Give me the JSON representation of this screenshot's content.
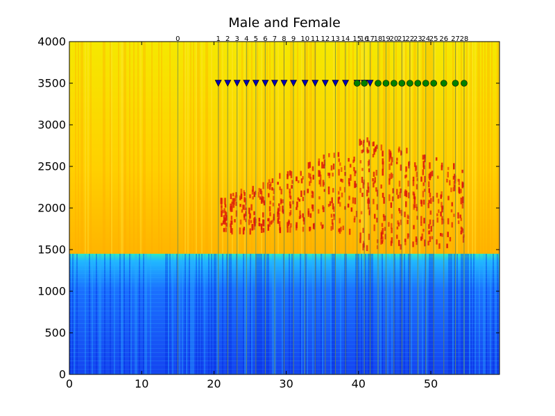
{
  "chart_data": {
    "type": "heatmap",
    "title": "Male and Female",
    "xlabel": "",
    "ylabel": "",
    "xlim": [
      0,
      59.5
    ],
    "ylim": [
      0,
      4000
    ],
    "x_ticks": [
      0,
      10,
      20,
      30,
      40,
      50
    ],
    "y_ticks": [
      0,
      500,
      1000,
      1500,
      2000,
      2500,
      3000,
      3500,
      4000
    ],
    "grid": false,
    "colormap": "jet",
    "spectrogram": {
      "low_band_top_hz": 1450,
      "low_band_color": "#1a66ff",
      "high_band_color": "#ffc800",
      "formant_color": "#dd1a0a"
    },
    "segment_boundaries": {
      "labels": [
        "0",
        "1",
        "2",
        "3",
        "4",
        "5",
        "6",
        "7",
        "8",
        "9",
        "10",
        "11",
        "12",
        "13",
        "14",
        "15",
        "16",
        "17",
        "18",
        "19",
        "20",
        "21",
        "22",
        "23",
        "24",
        "25",
        "26",
        "27",
        "28"
      ],
      "x": [
        15,
        20.6,
        21.9,
        23.2,
        24.5,
        25.8,
        27.1,
        28.4,
        29.7,
        31.0,
        32.6,
        34.0,
        35.4,
        36.8,
        38.2,
        39.8,
        40.8,
        41.6,
        42.7,
        43.8,
        44.9,
        46.0,
        47.1,
        48.2,
        49.3,
        50.4,
        51.8,
        53.4,
        54.6
      ]
    },
    "series": [
      {
        "marker": "triangle-down",
        "color": "#0000b0",
        "x": [
          20.6,
          21.9,
          23.2,
          24.5,
          25.8,
          27.1,
          28.4,
          29.7,
          31.0,
          32.6,
          34.0,
          35.4,
          36.8,
          38.2,
          39.8,
          40.8,
          41.6
        ],
        "y": [
          3500,
          3500,
          3500,
          3500,
          3500,
          3500,
          3500,
          3500,
          3500,
          3500,
          3500,
          3500,
          3500,
          3500,
          3500,
          3500,
          3500
        ]
      },
      {
        "marker": "circle",
        "color": "#008000",
        "x": [
          39.8,
          40.8,
          42.7,
          43.8,
          44.9,
          46.0,
          47.1,
          48.2,
          49.3,
          50.4,
          51.8,
          53.4,
          54.6
        ],
        "y": [
          3500,
          3500,
          3500,
          3500,
          3500,
          3500,
          3500,
          3500,
          3500,
          3500,
          3500,
          3500,
          3500
        ]
      }
    ]
  }
}
